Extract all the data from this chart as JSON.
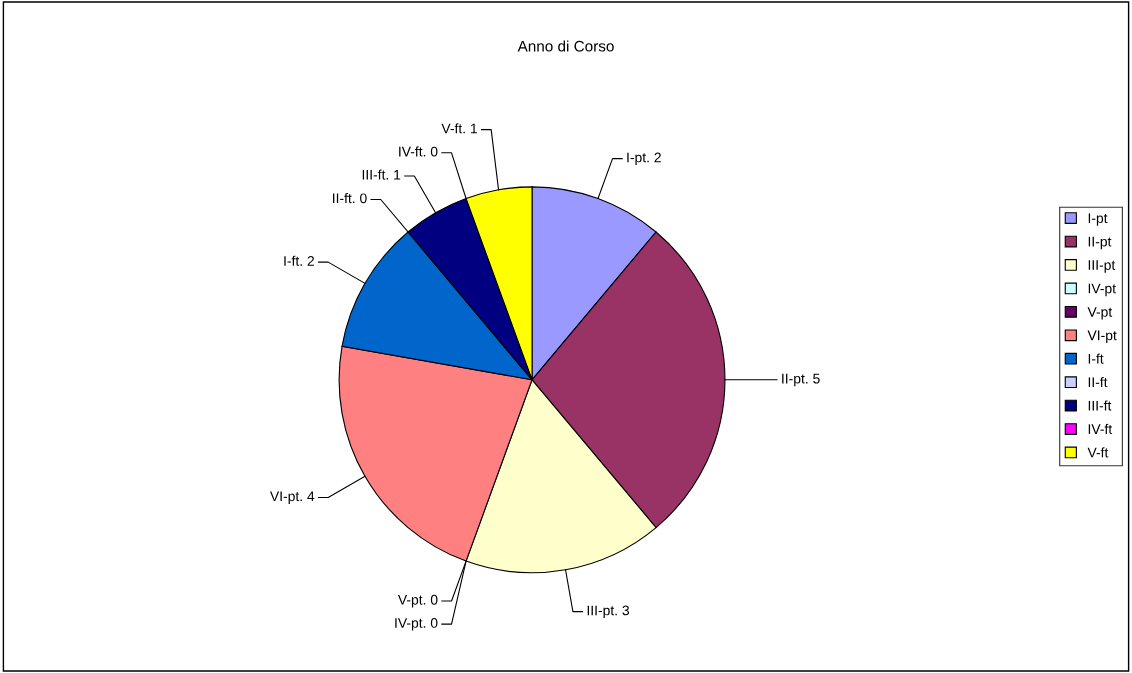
{
  "chart_data": {
    "type": "pie",
    "title": "Anno di Corso",
    "categories": [
      "I-pt",
      "II-pt",
      "III-pt",
      "IV-pt",
      "V-pt",
      "VI-pt",
      "I-ft",
      "II-ft",
      "III-ft",
      "IV-ft",
      "V-ft"
    ],
    "values": [
      2,
      5,
      3,
      0,
      0,
      4,
      2,
      0,
      1,
      0,
      1
    ],
    "colors": [
      "#9999ff",
      "#993366",
      "#ffffcc",
      "#ccffff",
      "#660066",
      "#ff8080",
      "#0066cc",
      "#ccccff",
      "#000080",
      "#ff00ff",
      "#ffff00"
    ],
    "value_labels": [
      "I-pt. 2",
      "II-pt. 5",
      "III-pt. 3",
      "IV-pt. 0",
      "V-pt. 0",
      "VI-pt. 4",
      "I-ft. 2",
      "II-ft. 0",
      "III-ft. 1",
      "IV-ft. 0",
      "V-ft. 1"
    ],
    "legend": "right"
  }
}
